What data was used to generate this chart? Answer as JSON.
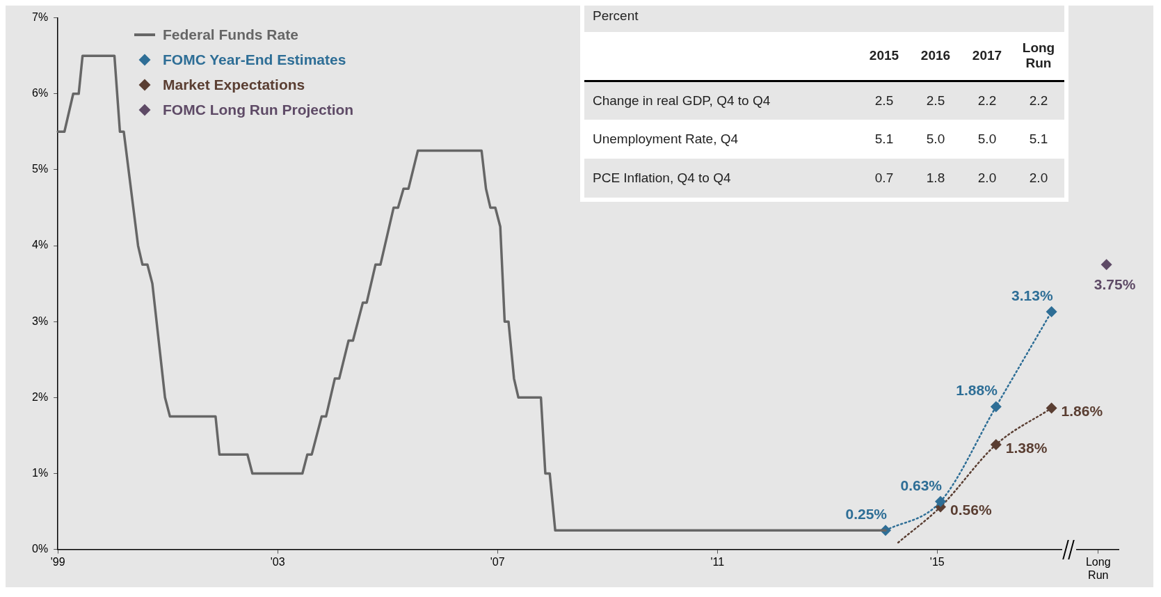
{
  "chart_data": [
    {
      "type": "line",
      "marker": "diamond",
      "legend": "top left",
      "ylim": [
        0,
        7
      ],
      "xlim": [
        1999,
        2018.3
      ],
      "yticks": [
        {
          "value": 0,
          "label": "0%"
        },
        {
          "value": 1,
          "label": "1%"
        },
        {
          "value": 2,
          "label": "2%"
        },
        {
          "value": 3,
          "label": "3%"
        },
        {
          "value": 4,
          "label": "4%"
        },
        {
          "value": 5,
          "label": "5%"
        },
        {
          "value": 6,
          "label": "6%"
        },
        {
          "value": 7,
          "label": "7%"
        }
      ],
      "xticks": [
        {
          "value": 1999,
          "label": "'99"
        },
        {
          "value": 2003,
          "label": "'03"
        },
        {
          "value": 2007,
          "label": "'07"
        },
        {
          "value": 2011,
          "label": "'11"
        },
        {
          "value": 2015,
          "label": "'15"
        },
        {
          "value": 2017.93,
          "label": "Long Run"
        }
      ],
      "series": [
        {
          "name": "Federal Funds Rate",
          "type": "line",
          "marker": "none",
          "line_style": "solid",
          "color": "#666666",
          "x": [
            1999,
            1999.12,
            1999.28,
            1999.38,
            1999.45,
            2000.03,
            2000.13,
            2000.2,
            2000.46,
            2000.54,
            2000.63,
            2000.72,
            2000.95,
            2001.04,
            2001.87,
            2001.94,
            2002.45,
            2002.54,
            2003.45,
            2003.54,
            2003.62,
            2003.8,
            2003.88,
            2004.04,
            2004.12,
            2004.29,
            2004.37,
            2004.55,
            2004.62,
            2004.78,
            2004.87,
            2005.11,
            2005.19,
            2005.29,
            2005.38,
            2005.55,
            2006.71,
            2006.79,
            2006.87,
            2006.96,
            2007.05,
            2007.13,
            2007.2,
            2007.3,
            2007.38,
            2007.79,
            2007.87,
            2007.95,
            2008.05,
            2014.06
          ],
          "values": [
            5.5,
            5.5,
            6,
            6,
            6.5,
            6.5,
            5.5,
            5.5,
            4,
            3.75,
            3.75,
            3.5,
            2,
            1.75,
            1.75,
            1.25,
            1.25,
            1,
            1,
            1.25,
            1.25,
            1.75,
            1.75,
            2.25,
            2.25,
            2.75,
            2.75,
            3.25,
            3.25,
            3.75,
            3.75,
            4.5,
            4.5,
            4.75,
            4.75,
            5.25,
            5.25,
            4.75,
            4.5,
            4.5,
            4.25,
            3,
            3,
            2.25,
            2,
            2,
            1,
            1,
            0.25,
            0.25
          ]
        },
        {
          "name": "FOMC Year-End Estimates",
          "type": "line",
          "line_style": "dotted",
          "color": "#2e6e96",
          "x": [
            2014.06,
            2015.06,
            2016.07,
            2017.08
          ],
          "values": [
            0.25,
            0.63,
            1.88,
            3.13
          ],
          "value_labels": [
            "0.25%",
            "0.63%",
            "1.88%",
            "3.13%"
          ]
        },
        {
          "name": "Market Expectations",
          "type": "line",
          "line_style": "dotted",
          "color": "#5a3e32",
          "x": [
            2014.29,
            2015.06,
            2016.07,
            2017.08
          ],
          "values": [
            0.09,
            0.56,
            1.38,
            1.86
          ],
          "value_labels": [
            null,
            "0.56%",
            "1.38%",
            "1.86%"
          ]
        },
        {
          "name": "FOMC Long Run Projection",
          "type": "scatter",
          "color": "#5e4a66",
          "x": [
            2018.08
          ],
          "values": [
            3.75
          ],
          "value_labels": [
            "3.75%"
          ]
        }
      ]
    },
    {
      "type": "other",
      "title": "Percent",
      "categories": [
        "2015",
        "2016",
        "2017",
        "Long Run"
      ],
      "y_categories": [
        "Change in real GDP, Q4 to Q4",
        "Unemployment Rate, Q4",
        "PCE Inflation, Q4 to Q4"
      ],
      "cell_labels": [
        [
          "2.5",
          "2.5",
          "2.2",
          "2.2"
        ],
        [
          "5.1",
          "5.0",
          "5.0",
          "5.1"
        ],
        [
          "0.7",
          "1.8",
          "2.0",
          "2.0"
        ]
      ]
    }
  ]
}
